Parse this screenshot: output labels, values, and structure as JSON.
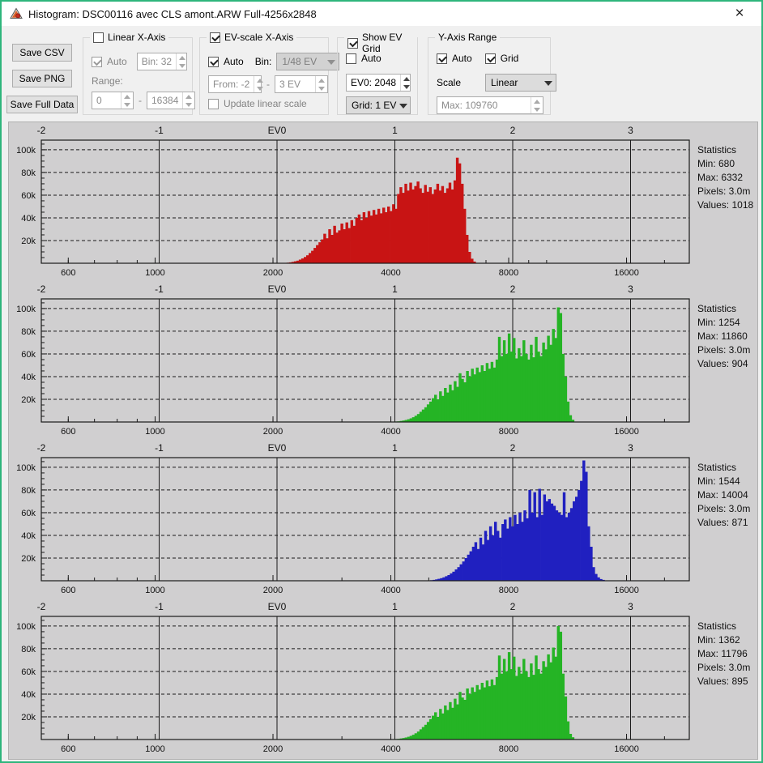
{
  "window": {
    "title": "Histogram: DSC00116 avec CLS amont.ARW Full-4256x2848",
    "close_label": "×"
  },
  "toolbar": {
    "buttons": {
      "csv": "Save CSV",
      "png": "Save PNG",
      "full": "Save Full Data"
    },
    "linear_group": {
      "title": "Linear X-Axis",
      "auto_label": "Auto",
      "bin_value": "Bin: 32",
      "range_label": "Range:",
      "range_from": "0",
      "dash": "-",
      "range_to": "16384"
    },
    "ev_group": {
      "title": "EV-scale X-Axis",
      "auto_label": "Auto",
      "bin_label": "Bin:",
      "bin_value": "1/48 EV",
      "from_value": "From: -2",
      "dash": "-",
      "to_value": "3 EV",
      "update_label": "Update linear scale"
    },
    "grid_group": {
      "title": "Show EV Grid",
      "auto_label": "Auto",
      "ev0_value": "EV0: 2048",
      "grid_value": "Grid: 1 EV"
    },
    "y_group": {
      "title": "Y-Axis Range",
      "auto_label": "Auto",
      "grid_label": "Grid",
      "scale_label": "Scale",
      "scale_value": "Linear",
      "max_value": "Max: 109760"
    }
  },
  "axes": {
    "ev0_value": 2048,
    "ev_labels": [
      {
        "ev": -2,
        "label": "-2"
      },
      {
        "ev": -1,
        "label": "-1"
      },
      {
        "ev": 0,
        "label": "EV0"
      },
      {
        "ev": 1,
        "label": "1"
      },
      {
        "ev": 2,
        "label": "2"
      },
      {
        "ev": 3,
        "label": "3"
      }
    ],
    "grid_evs": [
      -1,
      0,
      1,
      2,
      3
    ],
    "y_max_k": 108.5,
    "y_major": [
      {
        "v": 20,
        "label": "20k"
      },
      {
        "v": 40,
        "label": "40k"
      },
      {
        "v": 60,
        "label": "60k"
      },
      {
        "v": 80,
        "label": "80k"
      },
      {
        "v": 100,
        "label": "100k"
      }
    ],
    "y_minor_step": 5,
    "x_labels": [
      {
        "v": 600,
        "label": "600"
      },
      {
        "v": 1000,
        "label": "1000"
      },
      {
        "v": 2000,
        "label": "2000"
      },
      {
        "v": 4000,
        "label": "4000"
      },
      {
        "v": 8000,
        "label": "8000"
      },
      {
        "v": 16000,
        "label": "16000"
      }
    ],
    "x_minor": [
      500,
      600,
      700,
      800,
      900,
      1000,
      2000,
      3000,
      4000,
      5000,
      6000,
      7000,
      8000,
      9000,
      10000,
      16000,
      20000
    ]
  },
  "chart_data": [
    {
      "type": "bar",
      "channel": "red",
      "color": "#c81414",
      "title": "Raw histogram - red channel",
      "x_scale": "log2 EV (EV0=2048)",
      "ev_start": 0.06,
      "bin_ev": 0.02083333,
      "heights_k": [
        0.3,
        0.5,
        0.8,
        1.2,
        1.7,
        2.3,
        3.2,
        4.2,
        5.5,
        7,
        9,
        11,
        13.5,
        16,
        18.5,
        21,
        26,
        22,
        30,
        25,
        33,
        27,
        29,
        35,
        30,
        36,
        31,
        38,
        33,
        40,
        43,
        38,
        45,
        40,
        46,
        42,
        47,
        43,
        48,
        44,
        49,
        45,
        50,
        46,
        52,
        48,
        61,
        67,
        62,
        70,
        64,
        71,
        65,
        68,
        72,
        66,
        62,
        69,
        63,
        67,
        61,
        65,
        70,
        64,
        68,
        62,
        66,
        71,
        65,
        73,
        93,
        88,
        70,
        48,
        25,
        10,
        4,
        1.5
      ],
      "stats": [
        "Statistics",
        "Min: 680",
        "Max: 6332",
        "Pixels: 3.0m",
        "Values: 1018"
      ]
    },
    {
      "type": "bar",
      "channel": "green",
      "color": "#25b425",
      "title": "Raw histogram - green channel",
      "x_scale": "log2 EV (EV0=2048)",
      "ev_start": 1.0,
      "bin_ev": 0.02083333,
      "heights_k": [
        0.4,
        0.6,
        0.9,
        1.3,
        1.8,
        2.4,
        3.2,
        4.2,
        5.5,
        7,
        9,
        11,
        13,
        15.5,
        18,
        21,
        24,
        20,
        27,
        23,
        30,
        26,
        33,
        28,
        36,
        31,
        43,
        38,
        35,
        45,
        40,
        47,
        42,
        48,
        44,
        50,
        45,
        52,
        47,
        53,
        48,
        55,
        75,
        58,
        72,
        60,
        78,
        62,
        74,
        56,
        65,
        58,
        72,
        60,
        55,
        68,
        57,
        75,
        62,
        58,
        70,
        64,
        76,
        68,
        82,
        74,
        101,
        96,
        60,
        40,
        18,
        6,
        2
      ],
      "stats": [
        "Statistics",
        "Min: 1254",
        "Max: 11860",
        "Pixels: 3.0m",
        "Values: 904"
      ]
    },
    {
      "type": "bar",
      "channel": "blue",
      "color": "#2020c0",
      "title": "Raw histogram - blue channel",
      "x_scale": "log2 EV (EV0=2048)",
      "ev_start": 1.3,
      "bin_ev": 0.02083333,
      "heights_k": [
        0.5,
        0.8,
        1.2,
        1.7,
        2.3,
        3,
        4,
        5,
        6.5,
        8,
        10,
        12,
        14.5,
        17,
        20,
        23,
        26,
        30,
        34,
        28,
        38,
        32,
        44,
        36,
        48,
        40,
        52,
        44,
        38,
        50,
        54,
        46,
        56,
        48,
        58,
        50,
        60,
        52,
        62,
        55,
        80,
        60,
        78,
        56,
        81,
        58,
        76,
        70,
        72,
        68,
        66,
        62,
        60,
        58,
        78,
        56,
        60,
        64,
        70,
        74,
        80,
        88,
        106,
        96,
        48,
        30,
        12,
        6,
        3,
        1.5,
        0.8
      ],
      "stats": [
        "Statistics",
        "Min: 1544",
        "Max: 14004",
        "Pixels: 3.0m",
        "Values: 871"
      ]
    },
    {
      "type": "bar",
      "channel": "green2",
      "color": "#25b425",
      "title": "Raw histogram - green 2 channel",
      "x_scale": "log2 EV (EV0=2048)",
      "ev_start": 1.0,
      "bin_ev": 0.02083333,
      "heights_k": [
        0.4,
        0.6,
        0.9,
        1.3,
        1.8,
        2.4,
        3.2,
        4.2,
        5.5,
        7,
        9,
        11,
        13,
        15.5,
        18,
        21,
        24,
        20,
        27,
        23,
        30,
        26,
        33,
        28,
        36,
        31,
        42,
        37,
        35,
        45,
        40,
        46,
        42,
        48,
        44,
        50,
        46,
        52,
        47,
        53,
        48,
        55,
        74,
        58,
        71,
        60,
        77,
        62,
        73,
        56,
        64,
        58,
        71,
        60,
        55,
        67,
        57,
        74,
        62,
        58,
        69,
        64,
        75,
        68,
        81,
        73,
        100,
        95,
        58,
        38,
        16,
        5,
        2
      ],
      "stats": [
        "Statistics",
        "Min: 1362",
        "Max: 11796",
        "Pixels: 3.0m",
        "Values: 895"
      ]
    }
  ]
}
